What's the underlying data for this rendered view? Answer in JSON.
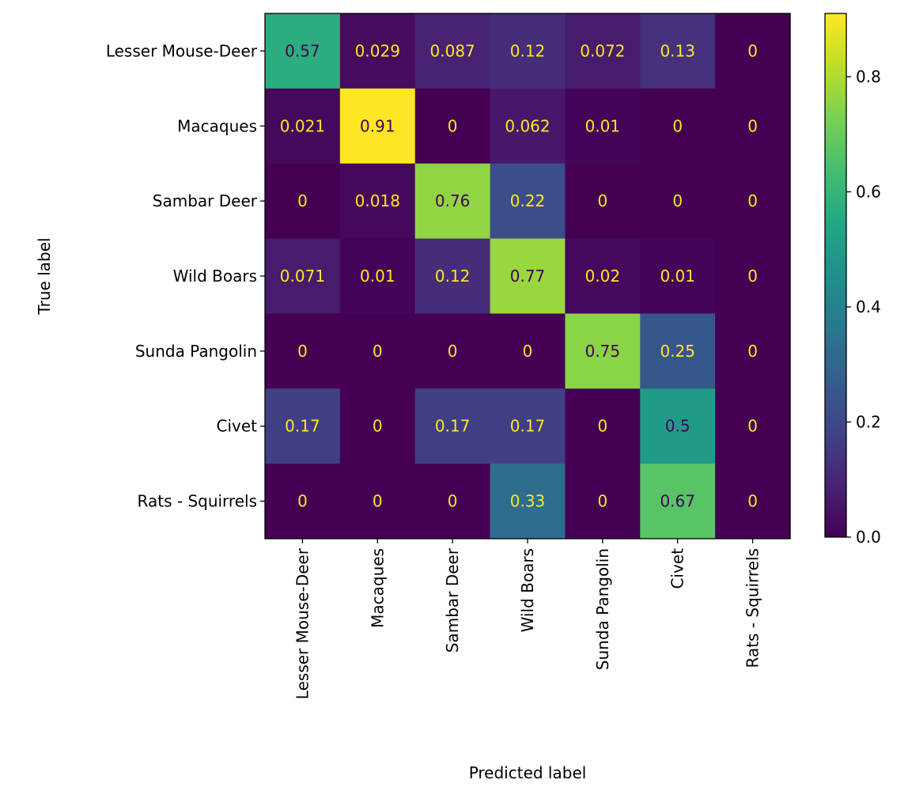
{
  "chart_data": {
    "type": "heatmap",
    "title": "",
    "xlabel": "Predicted label",
    "ylabel": "True label",
    "x_categories": [
      "Lesser Mouse-Deer",
      "Macaques",
      "Sambar Deer",
      "Wild Boars",
      "Sunda Pangolin",
      "Civet",
      "Rats - Squirrels"
    ],
    "y_categories": [
      "Lesser Mouse-Deer",
      "Macaques",
      "Sambar Deer",
      "Wild Boars",
      "Sunda Pangolin",
      "Civet",
      "Rats - Squirrels"
    ],
    "values": [
      [
        0.57,
        0.029,
        0.087,
        0.12,
        0.072,
        0.13,
        0
      ],
      [
        0.021,
        0.91,
        0,
        0.062,
        0.01,
        0,
        0
      ],
      [
        0,
        0.018,
        0.76,
        0.22,
        0,
        0,
        0
      ],
      [
        0.071,
        0.01,
        0.12,
        0.77,
        0.02,
        0.01,
        0
      ],
      [
        0,
        0,
        0,
        0,
        0.75,
        0.25,
        0
      ],
      [
        0.17,
        0,
        0.17,
        0.17,
        0,
        0.5,
        0
      ],
      [
        0,
        0,
        0,
        0.33,
        0,
        0.67,
        0
      ]
    ],
    "cell_labels": [
      [
        "0.57",
        "0.029",
        "0.087",
        "0.12",
        "0.072",
        "0.13",
        "0"
      ],
      [
        "0.021",
        "0.91",
        "0",
        "0.062",
        "0.01",
        "0",
        "0"
      ],
      [
        "0",
        "0.018",
        "0.76",
        "0.22",
        "0",
        "0",
        "0"
      ],
      [
        "0.071",
        "0.01",
        "0.12",
        "0.77",
        "0.02",
        "0.01",
        "0"
      ],
      [
        "0",
        "0",
        "0",
        "0",
        "0.75",
        "0.25",
        "0"
      ],
      [
        "0.17",
        "0",
        "0.17",
        "0.17",
        "0",
        "0.5",
        "0"
      ],
      [
        "0",
        "0",
        "0",
        "0.33",
        "0",
        "0.67",
        "0"
      ]
    ],
    "colormap": "viridis",
    "color_range": [
      0,
      0.91
    ],
    "colorbar_ticks": [
      "0.0",
      "0.2",
      "0.4",
      "0.6",
      "0.8"
    ],
    "colorbar_tick_values": [
      0.0,
      0.2,
      0.4,
      0.6,
      0.8
    ],
    "text_colors": {
      "dark": "#440154",
      "light": "#fde725"
    }
  }
}
